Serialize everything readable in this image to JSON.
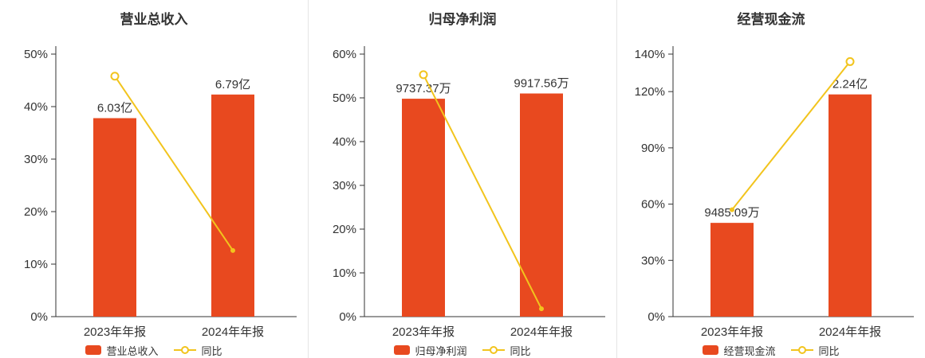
{
  "colors": {
    "bar": "#e8491f",
    "line": "#f2c41d",
    "axis": "#333333",
    "divider": "#e5e5e5",
    "text": "#333333"
  },
  "chart_data": [
    {
      "type": "bar-line",
      "title": "营业总收入",
      "categories": [
        "2023年年报",
        "2024年年报"
      ],
      "y_ticks": [
        0,
        10,
        20,
        30,
        40,
        50
      ],
      "ylim": [
        0,
        50
      ],
      "legend": {
        "bar": "营业总收入",
        "line": "同比"
      },
      "bar": {
        "labels": [
          "6.03亿",
          "6.79亿"
        ],
        "height_pct": [
          37.8,
          42.3
        ]
      },
      "line": {
        "name": "同比",
        "values_pct": [
          45.8,
          12.6
        ],
        "markers": [
          "ring",
          "dot"
        ]
      }
    },
    {
      "type": "bar-line",
      "title": "归母净利润",
      "categories": [
        "2023年年报",
        "2024年年报"
      ],
      "y_ticks": [
        0,
        10,
        20,
        30,
        40,
        50,
        60
      ],
      "ylim": [
        0,
        60
      ],
      "legend": {
        "bar": "归母净利润",
        "line": "同比"
      },
      "bar": {
        "labels": [
          "9737.37万",
          "9917.56万"
        ],
        "height_pct": [
          49.8,
          51.0
        ]
      },
      "line": {
        "name": "同比",
        "values_pct": [
          55.3,
          1.8
        ],
        "markers": [
          "ring",
          "dot"
        ]
      }
    },
    {
      "type": "bar-line",
      "title": "经营现金流",
      "categories": [
        "2023年年报",
        "2024年年报"
      ],
      "y_ticks": [
        0,
        30,
        60,
        90,
        120,
        140
      ],
      "ylim": [
        0,
        140
      ],
      "legend": {
        "bar": "经营现金流",
        "line": "同比"
      },
      "bar": {
        "labels": [
          "9485.09万",
          "2.24亿"
        ],
        "height_pct": [
          50.0,
          118.5
        ]
      },
      "line": {
        "name": "同比",
        "values_pct": [
          57.0,
          136.0
        ],
        "markers": [
          "dot",
          "ring"
        ]
      }
    }
  ]
}
